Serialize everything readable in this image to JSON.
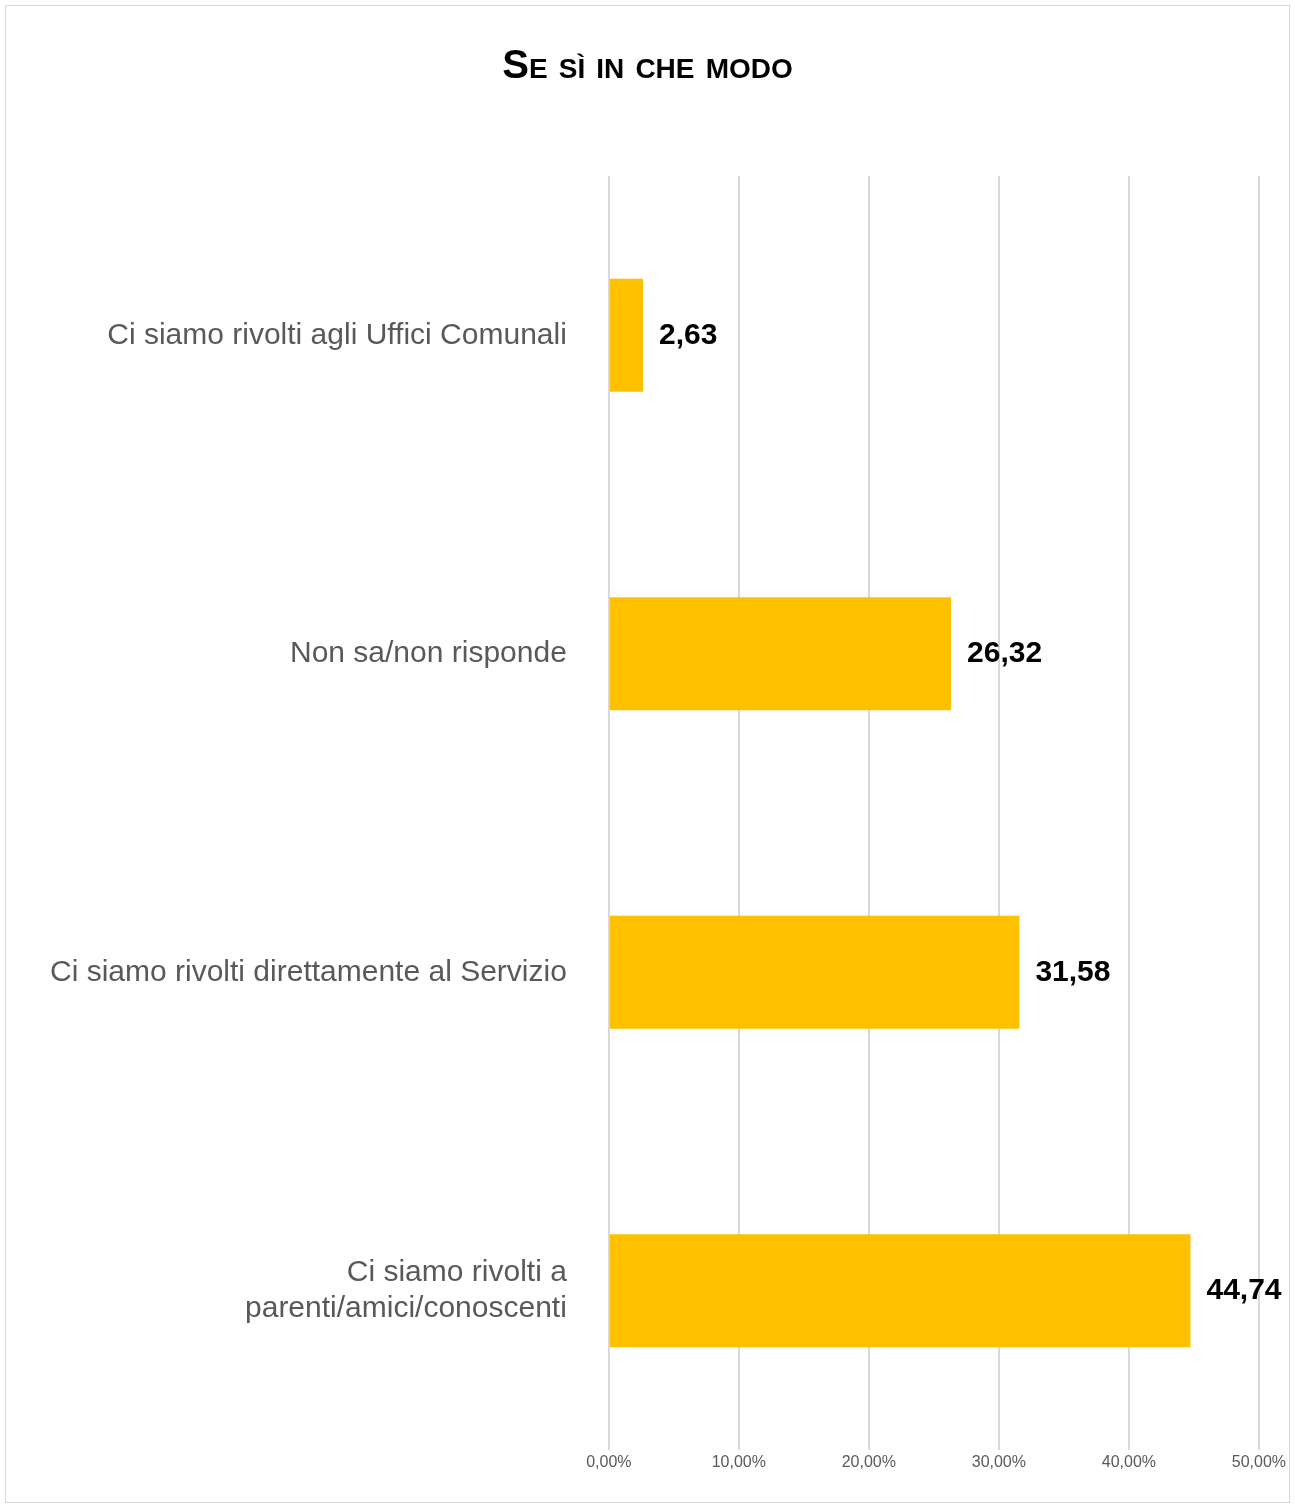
{
  "chart_data": {
    "type": "bar",
    "orientation": "horizontal",
    "title": "Se sì in che modo",
    "categories": [
      "Ci siamo rivolti agli Uffici Comunali",
      "Non sa/non risponde",
      "Ci siamo rivolti direttamente al Servizio",
      "Ci siamo rivolti a parenti/amici/conoscenti"
    ],
    "values": [
      2.63,
      26.32,
      31.58,
      44.74
    ],
    "value_labels": [
      "2,63",
      "26,32",
      "31,58",
      "44,74"
    ],
    "color": "#ffc000",
    "xlim": [
      0,
      50
    ],
    "xticks": [
      {
        "value": 0,
        "label": "0,00%"
      },
      {
        "value": 10,
        "label": "10,00%"
      },
      {
        "value": 20,
        "label": "20,00%"
      },
      {
        "value": 30,
        "label": "30,00%"
      },
      {
        "value": 40,
        "label": "40,00%"
      },
      {
        "value": 50,
        "label": "50,00%"
      }
    ],
    "grid": "x",
    "legend": false
  }
}
